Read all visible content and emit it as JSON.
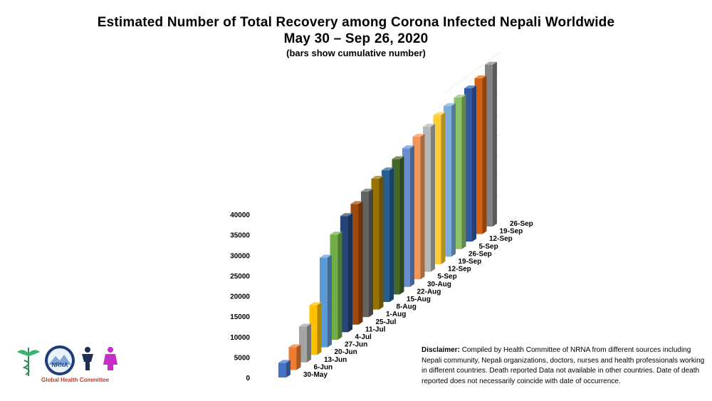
{
  "title_line1": "Estimated Number of Total Recovery among Corona Infected Nepali Worldwide",
  "title_line2": "May 30 – Sep 26, 2020",
  "subtitle": "(bars show cumulative number)",
  "logo": {
    "org": "NRNA",
    "caption": "Global Health Committee"
  },
  "disclaimer": {
    "label": "Disclaimer:",
    "text": " Compiled by Health Committee of NRNA from different sources including Nepali community,  Nepali organizations, doctors, nurses and health professionals working in different countries. Death reported  Data not available in other countries. Date of death reported does not necessarily coincide with date of occurrence."
  },
  "chart_data": {
    "type": "bar",
    "title": "Estimated Number of Total Recovery among Corona Infected Nepali Worldwide",
    "subtitle": "May 30 – Sep 26, 2020",
    "ylim": [
      0,
      40000
    ],
    "yticks": [
      0,
      5000,
      10000,
      15000,
      20000,
      25000,
      30000,
      35000,
      40000
    ],
    "ytick_labels": [
      "0",
      "5000",
      "10000",
      "15000",
      "20000",
      "25000",
      "30000",
      "35000",
      "40000"
    ],
    "grid": true,
    "categories": [
      "30-May",
      "6-Jun",
      "13-Jun",
      "20-Jun",
      "27-Jun",
      "4-Jul",
      "11-Jul",
      "25-Jul",
      "1-Aug",
      "8-Aug",
      "15-Aug",
      "22-Aug",
      "30-Aug",
      "5-Sep",
      "12-Sep",
      "19-Sep",
      "26-Sep",
      "5-Sep",
      "12-Sep",
      "19-Sep",
      "26-Sep"
    ],
    "values": [
      3600,
      5600,
      8800,
      12200,
      22000,
      25800,
      28500,
      29600,
      30800,
      32100,
      32300,
      33200,
      34000,
      35000,
      35600,
      36600,
      37000,
      37200,
      37600,
      38200,
      39700
    ],
    "colors": [
      "#4472c4",
      "#ed7d31",
      "#a5a5a5",
      "#ffc000",
      "#5b9bd5",
      "#70ad47",
      "#264478",
      "#9e480e",
      "#636363",
      "#997300",
      "#255e91",
      "#43682b",
      "#698ed0",
      "#f1975a",
      "#b7b7b7",
      "#ffcd33",
      "#7cafdd",
      "#8cc168",
      "#335aa1",
      "#d26012",
      "#828282"
    ]
  }
}
